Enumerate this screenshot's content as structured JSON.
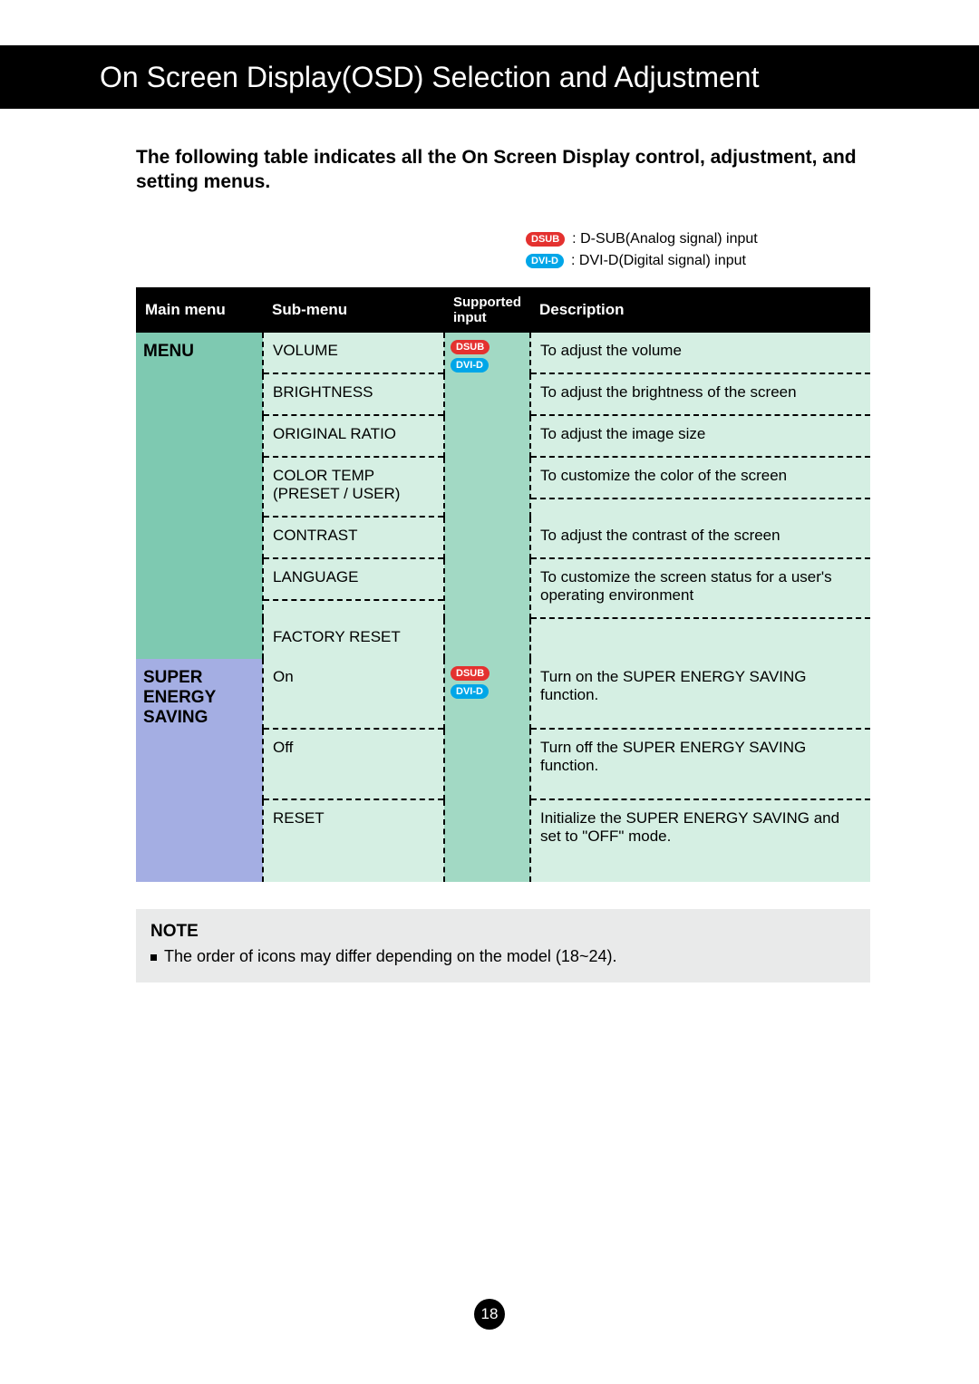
{
  "banner": {
    "title": "On Screen Display(OSD) Selection and Adjustment"
  },
  "intro": "The following table indicates all the On Screen Display control, adjustment, and setting menus.",
  "legend": {
    "dsub": {
      "badge": "DSUB",
      "text": ": D-SUB(Analog signal) input"
    },
    "dvid": {
      "badge": "DVI-D",
      "text": ": DVI-D(Digital signal) input"
    }
  },
  "headers": {
    "main": "Main menu",
    "sub": "Sub-menu",
    "input": "Supported input",
    "desc": "Description"
  },
  "colors": {
    "teal": "#7ec9b1",
    "lilac": "#a4aee3",
    "mint": "#d5efe3",
    "mint2": "#a2d9c4",
    "badge_dsub": "#e4312f",
    "badge_dvid": "#00a6e8",
    "black": "#000000",
    "white": "#ffffff",
    "note_bg": "#e9eaea"
  },
  "sections": [
    {
      "main": "MENU",
      "main_bg": "teal",
      "badges": [
        "DSUB",
        "DVI-D"
      ],
      "rows": [
        {
          "sub": "VOLUME",
          "desc": "To adjust the volume"
        },
        {
          "sub": "BRIGHTNESS",
          "desc": "To adjust the brightness of the screen"
        },
        {
          "sub": "ORIGINAL RATIO",
          "desc": "To adjust the image size"
        },
        {
          "sub": "COLOR TEMP (PRESET / USER)",
          "desc": "To customize the color of the screen"
        },
        {
          "sub": "CONTRAST",
          "desc": "To adjust the contrast of the screen"
        },
        {
          "sub": "LANGUAGE",
          "desc": "To customize the screen status for a user's operating environment"
        },
        {
          "sub": "FACTORY RESET",
          "desc": ""
        }
      ]
    },
    {
      "main": "SUPER ENERGY SAVING",
      "main_bg": "lilac",
      "badges": [
        "DSUB",
        "DVI-D"
      ],
      "rows": [
        {
          "sub": "On",
          "desc": "Turn on the SUPER ENERGY SAVING function."
        },
        {
          "sub": "Off",
          "desc": "Turn off the SUPER ENERGY SAVING function."
        },
        {
          "sub": "RESET",
          "desc": "Initialize the SUPER ENERGY SAVING and set to \"OFF\" mode."
        }
      ]
    }
  ],
  "note": {
    "title": "NOTE",
    "item": "The order of icons may differ depending on the model (18~24)."
  },
  "page": "18"
}
